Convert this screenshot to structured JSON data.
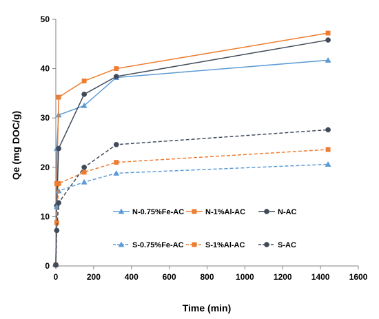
{
  "chart_data": {
    "type": "line",
    "title": "",
    "xlabel": "Time (min)",
    "ylabel": "Qe (mg DOC/g)",
    "xlim": [
      0,
      1600
    ],
    "ylim": [
      0,
      50
    ],
    "xticks": [
      "0",
      "200",
      "400",
      "600",
      "800",
      "1000",
      "1200",
      "1400",
      "1600"
    ],
    "yticks": [
      "0",
      "10",
      "20",
      "30",
      "40",
      "50"
    ],
    "grid": false,
    "legend": "center-right",
    "series": [
      {
        "name": "N-0.75%Fe-AC",
        "color": "#5b9bd5",
        "marker": "triangle",
        "dash": "solid",
        "x": [
          0,
          5,
          15,
          150,
          320,
          1440
        ],
        "y": [
          0.2,
          23.8,
          30.6,
          32.5,
          38.2,
          41.7
        ]
      },
      {
        "name": "N-1%Al-AC",
        "color": "#ed7d31",
        "marker": "square",
        "dash": "solid",
        "x": [
          0,
          5,
          15,
          150,
          320,
          1440
        ],
        "y": [
          0.2,
          16.7,
          34.2,
          37.5,
          40.0,
          47.2
        ]
      },
      {
        "name": "N-AC",
        "color": "#404a59",
        "marker": "circle",
        "dash": "solid",
        "x": [
          0,
          5,
          15,
          150,
          320,
          1440
        ],
        "y": [
          0.2,
          12.2,
          23.8,
          34.8,
          38.4,
          45.8
        ]
      },
      {
        "name": "S-0.75%Fe-AC",
        "color": "#5b9bd5",
        "marker": "triangle",
        "dash": "dashed",
        "x": [
          0,
          5,
          15,
          150,
          320,
          1440
        ],
        "y": [
          0.2,
          12.0,
          15.2,
          17.0,
          18.8,
          20.6
        ]
      },
      {
        "name": "S-1%Al-AC",
        "color": "#ed7d31",
        "marker": "square",
        "dash": "dashed",
        "x": [
          0,
          5,
          15,
          150,
          320,
          1440
        ],
        "y": [
          0.2,
          8.8,
          16.7,
          19.0,
          21.0,
          23.6
        ]
      },
      {
        "name": "S-AC",
        "color": "#404a59",
        "marker": "circle",
        "dash": "dashed",
        "x": [
          0,
          5,
          15,
          150,
          320,
          1440
        ],
        "y": [
          0.2,
          7.2,
          12.8,
          20.0,
          24.6,
          27.6
        ]
      }
    ]
  }
}
